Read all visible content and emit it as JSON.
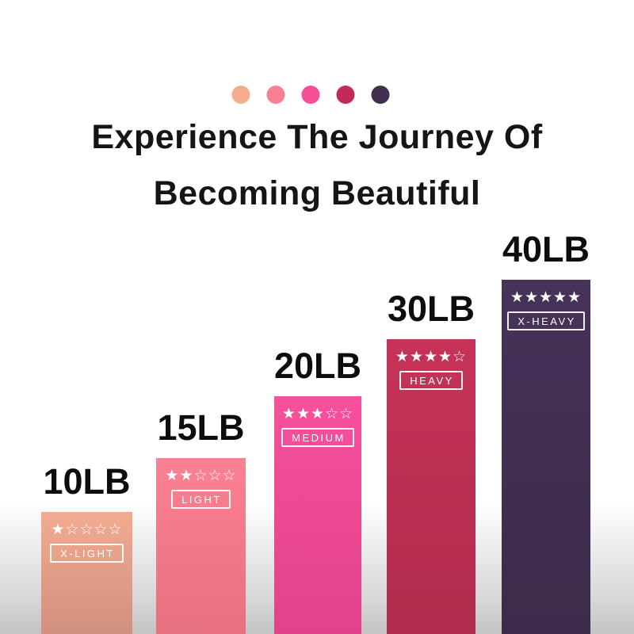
{
  "title": {
    "line1": "Experience The Journey Of",
    "line2": "Becoming Beautiful"
  },
  "palette_dots": [
    {
      "name": "x-light",
      "color": "#f2ae8e"
    },
    {
      "name": "light",
      "color": "#f97f92"
    },
    {
      "name": "medium",
      "color": "#f64e97"
    },
    {
      "name": "heavy",
      "color": "#c22b58"
    },
    {
      "name": "x-heavy",
      "color": "#43304f"
    }
  ],
  "chart_data": {
    "type": "bar",
    "title": "Experience The Journey Of Becoming Beautiful",
    "categories": [
      "X-LIGHT",
      "LIGHT",
      "MEDIUM",
      "HEAVY",
      "X-HEAVY"
    ],
    "values": [
      10,
      15,
      20,
      30,
      40
    ],
    "value_labels": [
      "10LB",
      "15LB",
      "20LB",
      "30LB",
      "40LB"
    ],
    "unit": "LB",
    "star_ratings": [
      1,
      2,
      3,
      4,
      5
    ],
    "star_scale_max": 5,
    "bar_colors": [
      "#f2ab90",
      "#fc8193",
      "#f8509c",
      "#c63359",
      "#473259"
    ],
    "xlabel": "",
    "ylabel": "",
    "grid": false,
    "legend_position": "none",
    "axes_shown": false
  },
  "bars": [
    {
      "weight": "10LB",
      "rating": 1,
      "stars": "★☆☆☆☆",
      "tag": "X-LIGHT",
      "color_top": "#f2ab90",
      "color_bottom": "#d1907f"
    },
    {
      "weight": "15LB",
      "rating": 2,
      "stars": "★★☆☆☆",
      "tag": "LIGHT",
      "color_top": "#fc8193",
      "color_bottom": "#e7707f"
    },
    {
      "weight": "20LB",
      "rating": 3,
      "stars": "★★★☆☆",
      "tag": "MEDIUM",
      "color_top": "#f8509c",
      "color_bottom": "#e04389"
    },
    {
      "weight": "30LB",
      "rating": 4,
      "stars": "★★★★☆",
      "tag": "HEAVY",
      "color_top": "#c63359",
      "color_bottom": "#b02b4d"
    },
    {
      "weight": "40LB",
      "rating": 5,
      "stars": "★★★★★",
      "tag": "X-HEAVY",
      "color_top": "#473259",
      "color_bottom": "#3c2b4b"
    }
  ],
  "background": {
    "top": "#ffffff",
    "bottom": "#c3c3c3"
  }
}
